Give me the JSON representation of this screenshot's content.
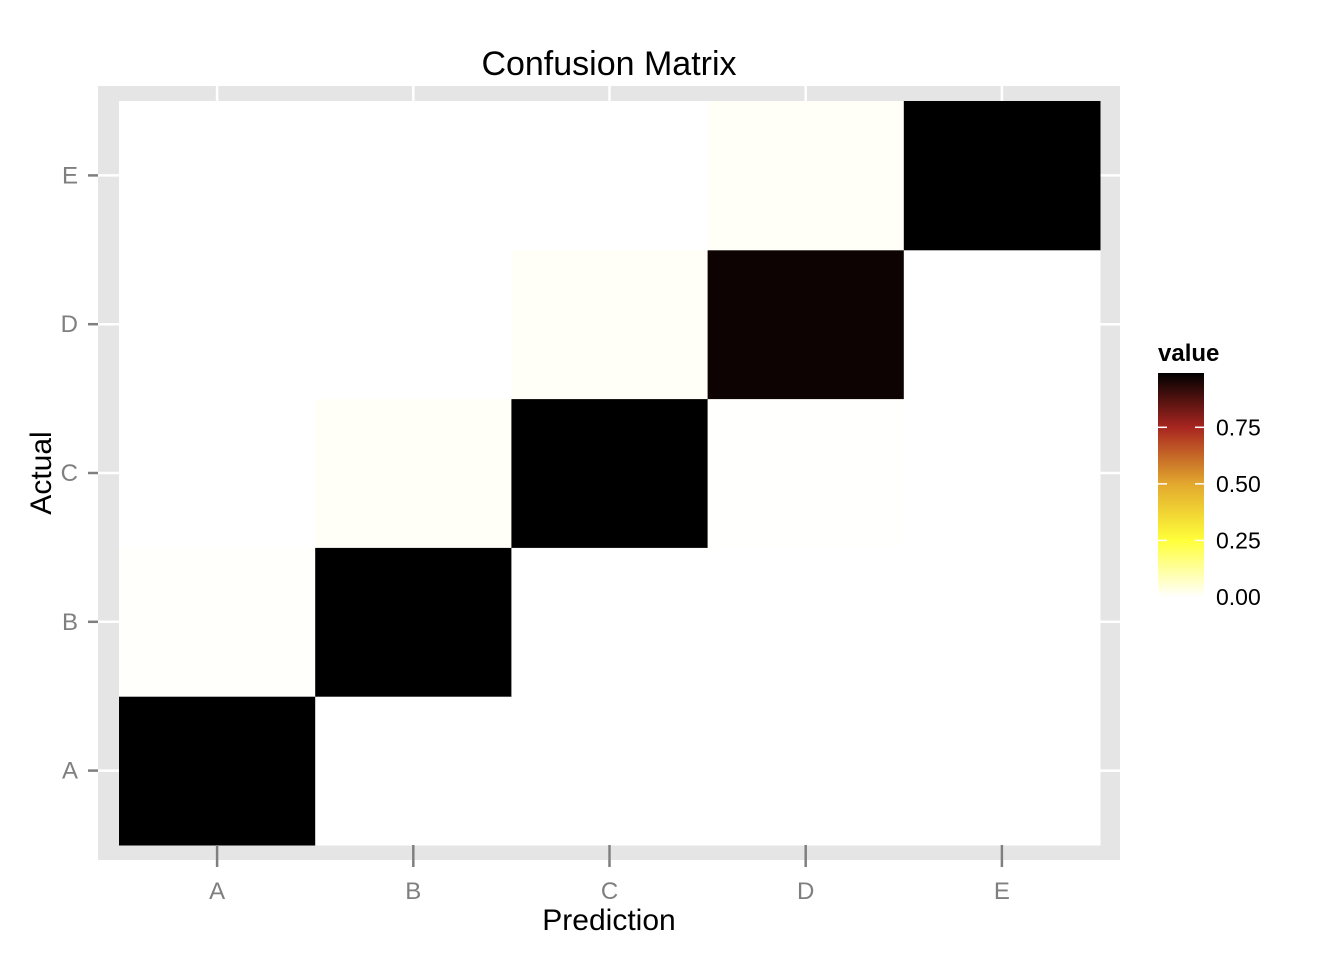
{
  "chart_data": {
    "type": "heatmap",
    "title": "Confusion Matrix",
    "xlabel": "Prediction",
    "ylabel": "Actual",
    "x_categories": [
      "A",
      "B",
      "C",
      "D",
      "E"
    ],
    "y_categories": [
      "A",
      "B",
      "C",
      "D",
      "E"
    ],
    "cells": [
      {
        "actual": "A",
        "prediction": "A",
        "value": 0.99
      },
      {
        "actual": "A",
        "prediction": "B",
        "value": 0.0
      },
      {
        "actual": "A",
        "prediction": "C",
        "value": 0.0
      },
      {
        "actual": "A",
        "prediction": "D",
        "value": 0.0
      },
      {
        "actual": "A",
        "prediction": "E",
        "value": 0.0
      },
      {
        "actual": "B",
        "prediction": "A",
        "value": 0.005
      },
      {
        "actual": "B",
        "prediction": "B",
        "value": 0.99
      },
      {
        "actual": "B",
        "prediction": "C",
        "value": 0.0
      },
      {
        "actual": "B",
        "prediction": "D",
        "value": 0.0
      },
      {
        "actual": "B",
        "prediction": "E",
        "value": 0.0
      },
      {
        "actual": "C",
        "prediction": "A",
        "value": 0.0
      },
      {
        "actual": "C",
        "prediction": "B",
        "value": 0.01
      },
      {
        "actual": "C",
        "prediction": "C",
        "value": 0.99
      },
      {
        "actual": "C",
        "prediction": "D",
        "value": 0.003
      },
      {
        "actual": "C",
        "prediction": "E",
        "value": 0.0
      },
      {
        "actual": "D",
        "prediction": "A",
        "value": 0.0
      },
      {
        "actual": "D",
        "prediction": "B",
        "value": 0.0
      },
      {
        "actual": "D",
        "prediction": "C",
        "value": 0.01
      },
      {
        "actual": "D",
        "prediction": "D",
        "value": 0.97
      },
      {
        "actual": "D",
        "prediction": "E",
        "value": 0.0
      },
      {
        "actual": "E",
        "prediction": "A",
        "value": 0.0
      },
      {
        "actual": "E",
        "prediction": "B",
        "value": 0.0
      },
      {
        "actual": "E",
        "prediction": "C",
        "value": 0.0
      },
      {
        "actual": "E",
        "prediction": "D",
        "value": 0.01
      },
      {
        "actual": "E",
        "prediction": "E",
        "value": 0.99
      }
    ],
    "legend": {
      "title": "value",
      "placement": "right",
      "range": [
        0,
        0.99
      ],
      "ticks": [
        {
          "value": 0.0,
          "label": "0.00"
        },
        {
          "value": 0.25,
          "label": "0.25"
        },
        {
          "value": 0.5,
          "label": "0.50"
        },
        {
          "value": 0.75,
          "label": "0.75"
        }
      ],
      "color_stops": [
        {
          "value": 0.0,
          "color": "#FFFFFF"
        },
        {
          "value": 0.25,
          "color": "#FFFF3A"
        },
        {
          "value": 0.5,
          "color": "#E2A82E"
        },
        {
          "value": 0.75,
          "color": "#A82520"
        },
        {
          "value": 0.99,
          "color": "#000000"
        }
      ]
    },
    "grid": true,
    "colors": {
      "panel_border": "#E5E5E5",
      "panel_background": "#FFFFFF",
      "grid_line": "#E5E5E5",
      "axis_tick_label": "#7F7F7F"
    }
  }
}
